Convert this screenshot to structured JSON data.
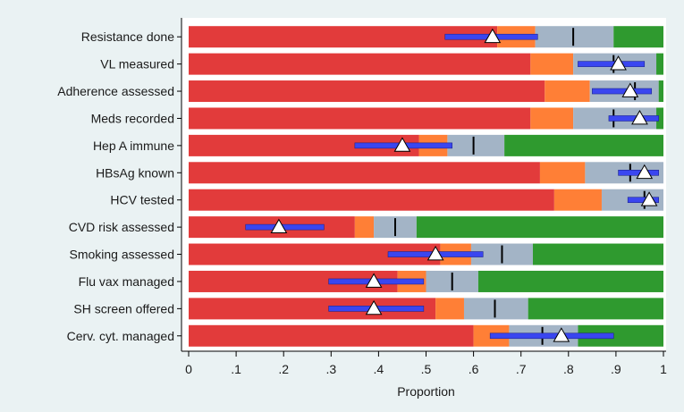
{
  "chart_data": {
    "type": "bar",
    "orientation": "horizontal",
    "stacked": true,
    "xlabel": "Proportion",
    "xlim": [
      0,
      1
    ],
    "xticks": [
      0,
      0.1,
      0.2,
      0.3,
      0.4,
      0.5,
      0.6,
      0.7,
      0.8,
      0.9,
      1
    ],
    "xtick_labels": [
      "0",
      ".1",
      ".2",
      ".3",
      ".4",
      ".5",
      ".6",
      ".7",
      ".8",
      ".9",
      "1"
    ],
    "grid": false,
    "categories": [
      "Resistance done",
      "VL measured",
      "Adherence assessed",
      "Meds recorded",
      "Hep A immune",
      "HBsAg known",
      "HCV tested",
      "CVD risk assessed",
      "Smoking assessed",
      "Flu vax managed",
      "SH screen offered",
      "Cerv. cyt. managed"
    ],
    "bands": [
      {
        "key": "red",
        "color": "#e23b3b",
        "ends": [
          0.65,
          0.72,
          0.75,
          0.72,
          0.485,
          0.74,
          0.77,
          0.35,
          0.53,
          0.44,
          0.52,
          0.6
        ]
      },
      {
        "key": "orange",
        "color": "#ff7f36",
        "ends": [
          0.73,
          0.81,
          0.845,
          0.81,
          0.545,
          0.835,
          0.87,
          0.39,
          0.595,
          0.5,
          0.58,
          0.675
        ]
      },
      {
        "key": "grey",
        "color": "#a3b4c6",
        "ends": [
          0.895,
          0.985,
          0.99,
          0.985,
          0.665,
          1.0,
          1.0,
          0.48,
          0.725,
          0.61,
          0.715,
          0.82
        ]
      },
      {
        "key": "green",
        "color": "#2f9a2f",
        "ends": [
          1,
          1,
          1,
          1,
          1,
          1,
          1,
          1,
          1,
          1,
          1,
          1
        ]
      }
    ],
    "median_marks": [
      0.81,
      0.895,
      0.94,
      0.895,
      0.6,
      0.93,
      0.96,
      0.435,
      0.66,
      0.555,
      0.645,
      0.745
    ],
    "point_estimates": [
      0.64,
      0.905,
      0.93,
      0.95,
      0.45,
      0.96,
      0.97,
      0.19,
      0.52,
      0.39,
      0.39,
      0.785
    ],
    "ci_lower": [
      0.54,
      0.82,
      0.85,
      0.885,
      0.35,
      0.905,
      0.925,
      0.12,
      0.42,
      0.295,
      0.295,
      0.635
    ],
    "ci_upper": [
      0.735,
      0.96,
      0.975,
      0.99,
      0.555,
      0.99,
      0.99,
      0.285,
      0.62,
      0.495,
      0.495,
      0.895
    ],
    "colors": {
      "ci_line": "#3a46f0",
      "ci_edge": "#1d2690",
      "marker_fill": "#ffffff",
      "marker_stroke": "#000000",
      "median": "#000000",
      "plot_background": "#ffffff",
      "page_background": "#eaf2f3"
    }
  }
}
